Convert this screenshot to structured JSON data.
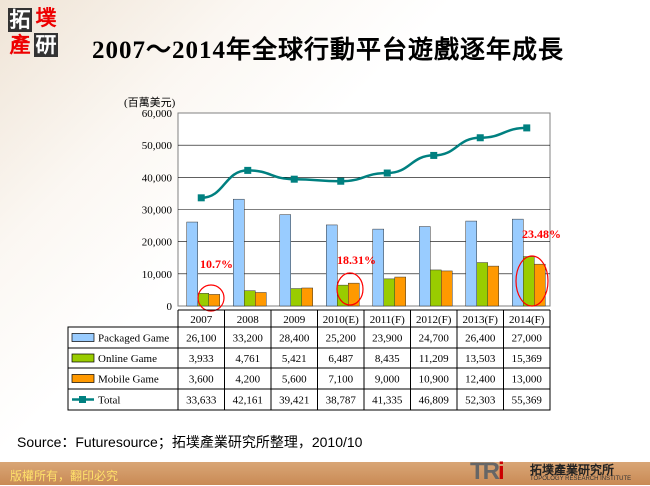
{
  "logo": {
    "chars": [
      "拓",
      "墣",
      "產",
      "研"
    ]
  },
  "title": "2007～2014年全球行動平台遊戲逐年成長",
  "source": "Source：Futuresource；拓墣產業研究所整理，2010/10",
  "footer": {
    "copyright": "版權所有，翻印必究",
    "org_logo": "TRi",
    "org_name": "拓墣產業研究所",
    "org_name_en": "TOPOLOGY RESEARCH INSTITUTE"
  },
  "colors": {
    "packaged": "#99ccff",
    "online": "#99cc00",
    "mobile": "#ff9900",
    "total": "#008080",
    "annotation": "#ff0000"
  },
  "chart_data": {
    "type": "bar+line",
    "unit_label": "(百萬美元)",
    "ylim": [
      0,
      60000
    ],
    "yticks": [
      "0",
      "10,000",
      "20,000",
      "30,000",
      "40,000",
      "50,000",
      "60,000"
    ],
    "grid": true,
    "legend": "table-bottom",
    "categories": [
      "2007",
      "2008",
      "2009",
      "2010(E)",
      "2011(F)",
      "2012(F)",
      "2013(F)",
      "2014(F)"
    ],
    "series": [
      {
        "name": "Packaged Game",
        "type": "bar",
        "values": [
          26100,
          33200,
          28400,
          25200,
          23900,
          24700,
          26400,
          27000
        ],
        "labels": [
          "26,100",
          "33,200",
          "28,400",
          "25,200",
          "23,900",
          "24,700",
          "26,400",
          "27,000"
        ]
      },
      {
        "name": "Online Game",
        "type": "bar",
        "values": [
          3933,
          4761,
          5421,
          6487,
          8435,
          11209,
          13503,
          15369
        ],
        "labels": [
          "3,933",
          "4,761",
          "5,421",
          "6,487",
          "8,435",
          "11,209",
          "13,503",
          "15,369"
        ]
      },
      {
        "name": "Mobile Game",
        "type": "bar",
        "values": [
          3600,
          4200,
          5600,
          7100,
          9000,
          10900,
          12400,
          13000
        ],
        "labels": [
          "3,600",
          "4,200",
          "5,600",
          "7,100",
          "9,000",
          "10,900",
          "12,400",
          "13,000"
        ]
      },
      {
        "name": "Total",
        "type": "line",
        "values": [
          33633,
          42161,
          39421,
          38787,
          41335,
          46809,
          52303,
          55369
        ],
        "labels": [
          "33,633",
          "42,161",
          "39,421",
          "38,787",
          "41,335",
          "46,809",
          "52,303",
          "55,369"
        ]
      }
    ],
    "annotations": [
      {
        "category": "2007",
        "text": "10.7%"
      },
      {
        "category": "2010(E)",
        "text": "18.31%"
      },
      {
        "category": "2014(F)",
        "text": "23.48%"
      }
    ]
  }
}
